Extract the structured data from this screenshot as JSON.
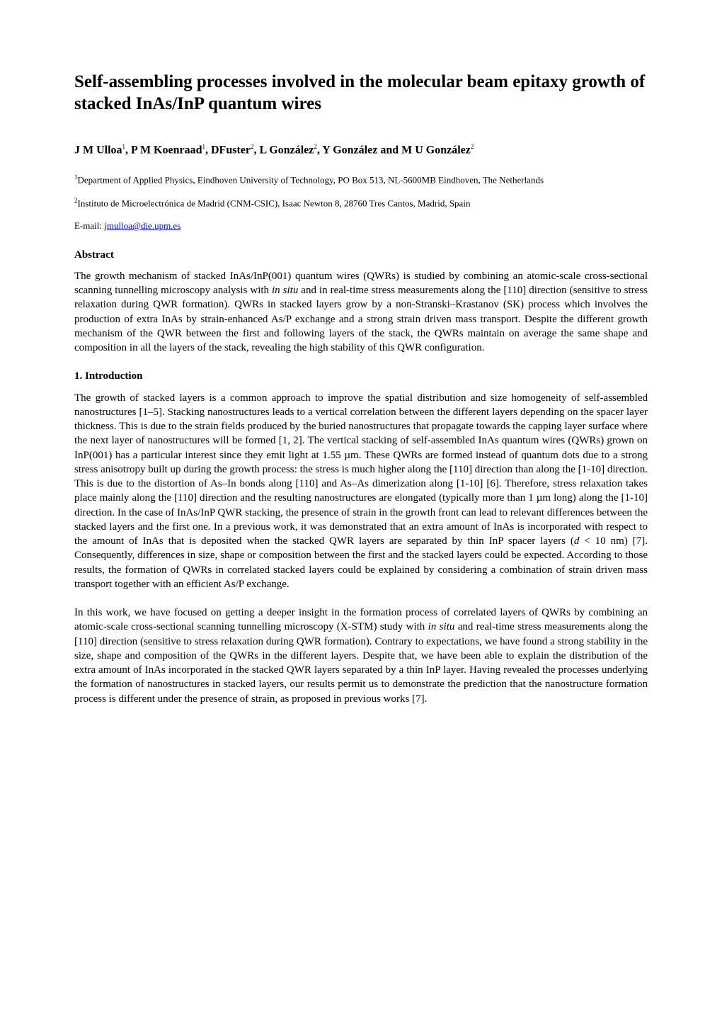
{
  "title": "Self-assembling processes involved in the molecular beam epitaxy growth of stacked InAs/InP quantum wires",
  "authors_html": "J M Ulloa<span class='sup'>1</span>, P M Koenraad<span class='sup'>1</span>, DFuster<span class='sup'>2</span>, L González<span class='sup'>2</span>, Y González and M U González<span class='sup'>2</span>",
  "affiliations": {
    "a1_html": "<span class='affil-sup'>1</span>Department of Applied Physics, Eindhoven University of Technology, PO Box 513, NL-5600MB Eindhoven, The Netherlands",
    "a2_html": "<span class='affil-sup'>2</span>Instituto de Microelectrónica de Madrid (CNM-CSIC), Isaac Newton 8, 28760 Tres Cantos, Madrid, Spain"
  },
  "email": {
    "label": "E-mail: ",
    "address": "jmulloa@die.upm.es"
  },
  "abstract": {
    "heading": "Abstract",
    "text_html": "The growth mechanism of stacked InAs/InP(001) quantum wires (QWRs) is studied by combining an atomic-scale cross-sectional scanning tunnelling microscopy analysis with <span class='italic'>in situ</span> and in real-time stress measurements along the [110] direction (sensitive to stress relaxation during QWR formation). QWRs in stacked layers grow by a non-Stranski–Krastanov (SK) process which involves the production of extra InAs by strain-enhanced As/P exchange and a strong strain driven mass transport. Despite the different growth mechanism of the QWR between the first and following layers of the stack, the QWRs maintain on average the same shape and composition in all the layers of the stack, revealing the high stability of this QWR configuration."
  },
  "section1": {
    "heading": "1. Introduction",
    "para1_html": "The growth of stacked layers is a common approach to improve the spatial distribution and size homogeneity of self-assembled nanostructures [1–5]. Stacking nanostructures leads to a vertical correlation between the different layers depending on the spacer layer thickness. This is due to the strain fields produced by the buried nanostructures that propagate towards the capping layer surface where the next layer of nanostructures will be formed [1, 2]. The vertical stacking of self-assembled InAs quantum wires (QWRs) grown on InP(001) has a particular interest since they emit light at 1.55 µm. These QWRs are formed instead of quantum dots due to a strong stress anisotropy built up during the growth process: the stress is much higher along the [110] direction than along the [1-10] direction. This is due to the distortion of As–In bonds along [110] and As–As dimerization along [1-10] [6]. Therefore, stress relaxation takes place mainly along the [110] direction and the resulting nanostructures are elongated (typically more than 1 µm long) along the [1-10] direction. In the case of InAs/InP QWR stacking, the presence of strain in the growth front can lead to relevant differences between the stacked layers and the first one. In a previous work, it was demonstrated that an extra amount of InAs is incorporated with respect to the amount of InAs that is deposited when the stacked QWR layers are separated by thin InP spacer layers (<span class='italic'>d</span> &lt; 10 nm) [7]. Consequently, differences in size, shape or composition between the first and the stacked layers could be expected. According to those results, the formation of QWRs in correlated stacked layers could be explained by considering a combination of strain driven mass transport together with an efficient As/P exchange.",
    "para2_html": "In this work, we have focused on getting a deeper insight in the formation process of correlated layers of QWRs by combining an atomic-scale cross-sectional scanning tunnelling microscopy (X-STM) study with <span class='italic'>in situ</span> and real-time stress measurements along the [110] direction (sensitive to stress relaxation during QWR formation). Contrary to expectations, we have found a strong stability in the size, shape and composition of the QWRs in the different layers. Despite that, we have been able to explain the distribution of the extra amount of InAs incorporated in the stacked QWR layers separated by a thin InP layer. Having revealed the processes underlying the formation of nanostructures in stacked layers, our results permit us to demonstrate the prediction that the nanostructure formation process is different under the presence of strain, as proposed in previous works [7]."
  }
}
